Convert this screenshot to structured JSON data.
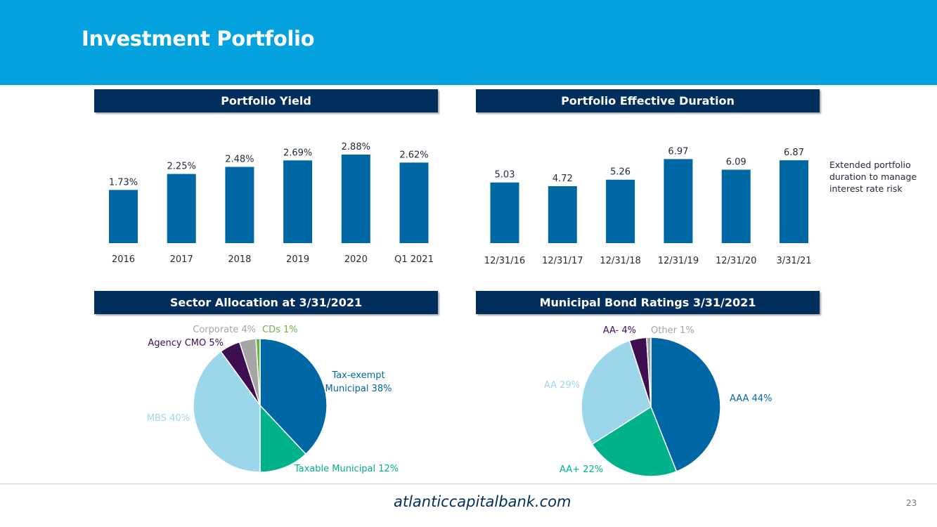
{
  "header": {
    "title": "Investment Portfolio"
  },
  "colors": {
    "header_bg": "#04a3e0",
    "banner_bg": "#002e5d",
    "bar": "#0067a5",
    "tax_exempt": "#0067a5",
    "taxable": "#00b28a",
    "mbs": "#9cd6ea",
    "agency_cmo": "#3d0f50",
    "corporate": "#a5a5a5",
    "cds": "#6db33f"
  },
  "chart_data": [
    {
      "type": "bar",
      "title": "Portfolio Yield",
      "categories": [
        "2016",
        "2017",
        "2018",
        "2019",
        "2020",
        "Q1 2021"
      ],
      "values": [
        1.73,
        2.25,
        2.48,
        2.69,
        2.88,
        2.62
      ],
      "labels": [
        "1.73%",
        "2.25%",
        "2.48%",
        "2.69%",
        "2.88%",
        "2.62%"
      ],
      "ylim": [
        0,
        3.2
      ]
    },
    {
      "type": "bar",
      "title": "Portfolio Effective Duration",
      "categories": [
        "12/31/16",
        "12/31/17",
        "12/31/18",
        "12/31/19",
        "12/31/20",
        "3/31/21"
      ],
      "values": [
        5.03,
        4.72,
        5.26,
        6.97,
        6.09,
        6.87
      ],
      "labels": [
        "5.03",
        "4.72",
        "5.26",
        "6.97",
        "6.09",
        "6.87"
      ],
      "ylim": [
        0,
        8.8
      ],
      "annotation": "Extended portfolio duration to manage interest rate risk"
    },
    {
      "type": "pie",
      "title": "Sector Allocation at 3/31/2021",
      "slices": [
        {
          "name": "Tax-exempt Municipal",
          "label_lines": [
            "Tax-exempt",
            "Municipal 38%"
          ],
          "value": 38,
          "color": "#0067a5"
        },
        {
          "name": "Taxable Municipal",
          "label_lines": [
            "Taxable Municipal 12%"
          ],
          "value": 12,
          "color": "#00b28a"
        },
        {
          "name": "MBS",
          "label_lines": [
            "MBS 40%"
          ],
          "value": 40,
          "color": "#9cd6ea"
        },
        {
          "name": "Agency CMO",
          "label_lines": [
            "Agency CMO 5%"
          ],
          "value": 5,
          "color": "#3d0f50"
        },
        {
          "name": "Corporate",
          "label_lines": [
            "Corporate 4%"
          ],
          "value": 4,
          "color": "#a5a5a5"
        },
        {
          "name": "CDs",
          "label_lines": [
            "CDs 1%"
          ],
          "value": 1,
          "color": "#6db33f"
        }
      ]
    },
    {
      "type": "pie",
      "title": "Municipal Bond Ratings 3/31/2021",
      "slices": [
        {
          "name": "AAA",
          "label_lines": [
            "AAA 44%"
          ],
          "value": 44,
          "color": "#0067a5"
        },
        {
          "name": "AA+",
          "label_lines": [
            "AA+ 22%"
          ],
          "value": 22,
          "color": "#00b28a"
        },
        {
          "name": "AA",
          "label_lines": [
            "AA 29%"
          ],
          "value": 29,
          "color": "#9cd6ea"
        },
        {
          "name": "AA-",
          "label_lines": [
            "AA- 4%"
          ],
          "value": 4,
          "color": "#3d0f50"
        },
        {
          "name": "Other",
          "label_lines": [
            "Other 1%"
          ],
          "value": 1,
          "color": "#a5a5a5"
        }
      ]
    }
  ],
  "footer": {
    "url": "atlanticcapitalbank.com",
    "page_number": "23"
  }
}
